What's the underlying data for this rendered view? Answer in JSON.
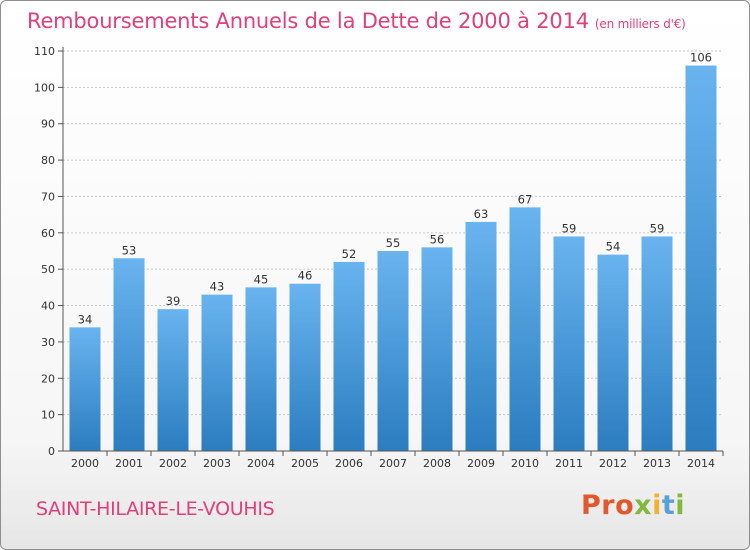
{
  "title": "Remboursements Annuels de la Dette de 2000 à 2014",
  "unit": "(en milliers d'€)",
  "commune": "SAINT-HILAIRE-LE-VOUHIS",
  "logo": {
    "text": "Proxiti"
  },
  "colors": {
    "title": "#e0407a",
    "bar_light": "#69b4ef",
    "bar_dark": "#2b7dc0"
  },
  "chart_data": {
    "type": "bar",
    "title": "Remboursements Annuels de la Dette de 2000 à 2014",
    "categories": [
      "2000",
      "2001",
      "2002",
      "2003",
      "2004",
      "2005",
      "2006",
      "2007",
      "2008",
      "2009",
      "2010",
      "2011",
      "2012",
      "2013",
      "2014"
    ],
    "values": [
      34,
      53,
      39,
      43,
      45,
      46,
      52,
      55,
      56,
      63,
      67,
      59,
      54,
      59,
      106
    ],
    "ylim": [
      0,
      110
    ],
    "yticks": [
      0,
      10,
      20,
      30,
      40,
      50,
      60,
      70,
      80,
      90,
      100,
      110
    ],
    "xlabel": "",
    "ylabel": "",
    "grid": true
  }
}
